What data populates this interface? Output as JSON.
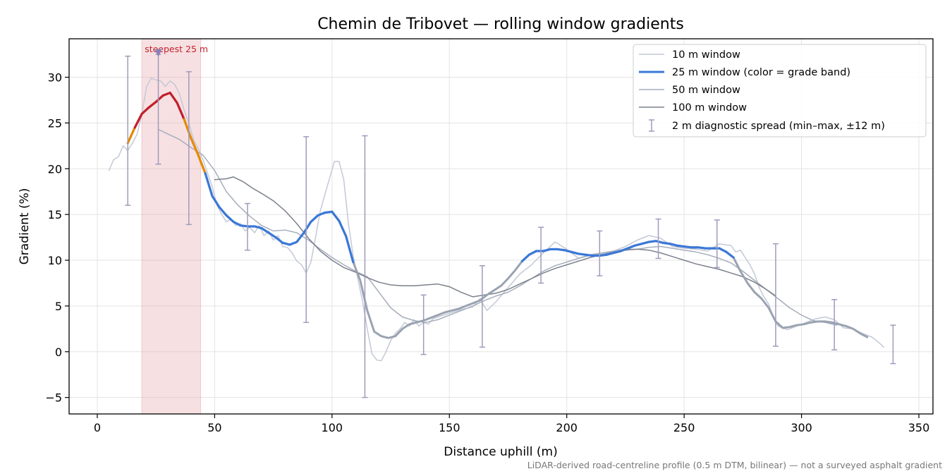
{
  "chart_data": {
    "type": "line",
    "title": "Chemin de Tribovet — rolling window gradients",
    "xlabel": "Distance uphill (m)",
    "ylabel": "Gradient (%)",
    "xlim": [
      -12,
      356
    ],
    "ylim": [
      -6.8,
      34.2
    ],
    "xticks": [
      0,
      50,
      100,
      150,
      200,
      250,
      300,
      350
    ],
    "yticks": [
      -5,
      0,
      5,
      10,
      15,
      20,
      25,
      30
    ],
    "grid": true,
    "legend_position": "top-right",
    "colors": {
      "w10": "#c3c9d6",
      "w25_base": "#9aa3b1",
      "w50": "#a6aebc",
      "w100": "#7b818c",
      "band_steep": "#c21f2a",
      "band_hard": "#e58a00",
      "band_moderate": "#3b78d8",
      "errorbar": "#9f9bbd",
      "marker": "#8a7fb8",
      "highlight": "#e8a6ad",
      "annotation": "#c2222c"
    },
    "series": [
      {
        "name": "10 m window",
        "key": "w10",
        "x": [
          5,
          7,
          9,
          11,
          13,
          15,
          17,
          19,
          21,
          23,
          25,
          27,
          29,
          31,
          33,
          35,
          37,
          39,
          41,
          43,
          45,
          47,
          49,
          51,
          53,
          55,
          57,
          59,
          61,
          63,
          65,
          67,
          69,
          71,
          73,
          75,
          77,
          79,
          81,
          83,
          85,
          87,
          89,
          91,
          93,
          95,
          97,
          99,
          101,
          103,
          105,
          107,
          109,
          111,
          113,
          115,
          117,
          119,
          121,
          123,
          125,
          127,
          129,
          131,
          133,
          135,
          137,
          139,
          141,
          143,
          145,
          150,
          155,
          160,
          163,
          166,
          170,
          175,
          180,
          185,
          190,
          195,
          200,
          205,
          210,
          215,
          220,
          225,
          230,
          235,
          240,
          245,
          250,
          255,
          260,
          265,
          270,
          272,
          274,
          276,
          278,
          280,
          282,
          284,
          286,
          288,
          290,
          294,
          298,
          302,
          306,
          310,
          314,
          318,
          322,
          326,
          330,
          333,
          335
        ],
        "y": [
          19.8,
          21.0,
          21.3,
          22.5,
          22.0,
          22.8,
          23.8,
          26.0,
          29.0,
          29.9,
          29.7,
          29.6,
          29.0,
          29.6,
          29.2,
          28.2,
          26.4,
          25.0,
          23.2,
          22.2,
          21.0,
          19.5,
          18.0,
          16.0,
          15.0,
          14.2,
          14.5,
          13.8,
          14.0,
          13.2,
          13.6,
          13.0,
          13.8,
          12.7,
          13.2,
          12.2,
          12.7,
          11.5,
          11.4,
          10.8,
          9.9,
          9.5,
          8.6,
          9.8,
          12.5,
          15.4,
          17.2,
          19.0,
          20.8,
          20.8,
          18.8,
          14.0,
          10.5,
          8.0,
          5.5,
          2.5,
          -0.2,
          -0.9,
          -1.0,
          0.0,
          1.2,
          2.0,
          2.5,
          3.2,
          2.8,
          3.5,
          2.8,
          3.2,
          3.0,
          3.6,
          3.8,
          4.2,
          4.6,
          4.9,
          5.8,
          4.5,
          5.5,
          7.0,
          8.5,
          9.5,
          10.8,
          12.0,
          11.2,
          10.2,
          10.5,
          10.7,
          11.0,
          11.5,
          12.2,
          12.7,
          12.4,
          11.5,
          11.3,
          11.2,
          11.0,
          11.8,
          11.6,
          10.9,
          11.1,
          10.3,
          9.5,
          8.5,
          7.0,
          6.0,
          5.2,
          3.8,
          2.8,
          2.4,
          2.8,
          3.2,
          3.6,
          3.8,
          3.5,
          2.6,
          2.5,
          2.0,
          1.6,
          1.0,
          0.5
        ]
      },
      {
        "name": "25 m window (color = grade band)",
        "key": "w25",
        "x": [
          13,
          16,
          19,
          22,
          25,
          28,
          31,
          34,
          37,
          40,
          43,
          46,
          49,
          52,
          55,
          58,
          61,
          64,
          67,
          70,
          73,
          76,
          79,
          82,
          85,
          88,
          91,
          94,
          97,
          100,
          103,
          106,
          109,
          112,
          115,
          118,
          121,
          124,
          127,
          130,
          133,
          136,
          139,
          142,
          145,
          148,
          151,
          154,
          157,
          160,
          163,
          166,
          169,
          172,
          175,
          178,
          181,
          184,
          187,
          190,
          193,
          196,
          199,
          202,
          205,
          208,
          211,
          214,
          217,
          220,
          223,
          226,
          229,
          232,
          235,
          238,
          241,
          244,
          247,
          250,
          253,
          256,
          259,
          262,
          265,
          268,
          271,
          274,
          277,
          280,
          283,
          286,
          289,
          292,
          295,
          298,
          301,
          304,
          307,
          310,
          313,
          316,
          319,
          322,
          325,
          328
        ],
        "y": [
          22.8,
          24.5,
          26.0,
          26.7,
          27.3,
          28.0,
          28.3,
          27.2,
          25.4,
          23.3,
          21.5,
          19.5,
          17.0,
          15.8,
          14.9,
          14.2,
          13.8,
          13.7,
          13.7,
          13.5,
          13.0,
          12.5,
          11.9,
          11.7,
          12.0,
          13.0,
          14.2,
          14.9,
          15.2,
          15.3,
          14.3,
          12.6,
          9.8,
          7.8,
          4.5,
          2.2,
          1.7,
          1.5,
          1.7,
          2.5,
          3.0,
          3.2,
          3.4,
          3.7,
          4.0,
          4.3,
          4.5,
          4.7,
          5.0,
          5.3,
          5.6,
          6.2,
          6.7,
          7.2,
          8.0,
          8.9,
          9.9,
          10.6,
          11.0,
          11.0,
          11.2,
          11.2,
          11.1,
          10.9,
          10.7,
          10.6,
          10.5,
          10.5,
          10.6,
          10.8,
          11.0,
          11.3,
          11.6,
          11.8,
          12.0,
          12.1,
          11.9,
          11.8,
          11.6,
          11.5,
          11.4,
          11.4,
          11.3,
          11.3,
          11.3,
          10.9,
          10.3,
          8.8,
          7.5,
          6.5,
          5.8,
          4.8,
          3.3,
          2.6,
          2.7,
          2.9,
          3.0,
          3.2,
          3.3,
          3.3,
          3.2,
          3.0,
          2.8,
          2.5,
          2.0,
          1.6
        ]
      },
      {
        "name": "50 m window",
        "key": "w50",
        "x": [
          26,
          30,
          35,
          40,
          45,
          50,
          55,
          60,
          65,
          70,
          75,
          80,
          85,
          90,
          95,
          100,
          105,
          110,
          115,
          120,
          125,
          130,
          135,
          140,
          145,
          150,
          155,
          160,
          165,
          170,
          175,
          180,
          185,
          190,
          195,
          200,
          205,
          210,
          215,
          220,
          225,
          230,
          235,
          240,
          245,
          250,
          255,
          260,
          265,
          270,
          275,
          280,
          285,
          290,
          295,
          300,
          305,
          310,
          315
        ],
        "y": [
          24.3,
          23.8,
          23.2,
          22.3,
          21.5,
          19.8,
          17.5,
          16.0,
          14.8,
          13.8,
          13.2,
          13.3,
          13.0,
          12.2,
          11.2,
          10.3,
          9.5,
          8.8,
          8.2,
          6.5,
          4.8,
          3.8,
          3.4,
          3.2,
          3.5,
          4.0,
          4.5,
          5.0,
          5.6,
          6.1,
          6.5,
          7.2,
          8.0,
          8.8,
          9.4,
          9.8,
          10.2,
          10.6,
          10.8,
          11.0,
          11.2,
          11.2,
          11.4,
          11.5,
          11.3,
          11.1,
          10.9,
          10.6,
          10.2,
          9.7,
          8.8,
          7.8,
          6.8,
          5.8,
          4.8,
          4.0,
          3.4,
          3.2,
          2.9
        ]
      },
      {
        "name": "100 m window",
        "key": "w100",
        "x": [
          50,
          55,
          58,
          62,
          66,
          70,
          75,
          80,
          85,
          90,
          95,
          100,
          105,
          110,
          115,
          120,
          125,
          130,
          135,
          140,
          145,
          150,
          155,
          160,
          165,
          170,
          175,
          180,
          185,
          190,
          195,
          200,
          205,
          210,
          215,
          220,
          225,
          230,
          235,
          240,
          245,
          250,
          255,
          260,
          265,
          270,
          275,
          280,
          285,
          289
        ],
        "y": [
          18.8,
          18.9,
          19.1,
          18.6,
          17.9,
          17.3,
          16.5,
          15.4,
          14.0,
          12.4,
          11.0,
          10.0,
          9.2,
          8.7,
          8.1,
          7.6,
          7.3,
          7.2,
          7.2,
          7.3,
          7.4,
          7.1,
          6.5,
          6.0,
          6.2,
          6.4,
          6.8,
          7.4,
          8.0,
          8.6,
          9.1,
          9.5,
          9.9,
          10.3,
          10.6,
          10.9,
          11.1,
          11.2,
          11.1,
          10.8,
          10.4,
          10.0,
          9.6,
          9.3,
          9.0,
          8.6,
          8.2,
          7.6,
          6.8,
          6.1
        ]
      }
    ],
    "errorbars": {
      "name": "2 m diagnostic spread (min–max, ±12 m)",
      "points": [
        {
          "x": 13,
          "ymin": 16.0,
          "ymax": 32.3
        },
        {
          "x": 26,
          "ymin": 20.5,
          "ymax": 32.5
        },
        {
          "x": 39,
          "ymin": 13.9,
          "ymax": 30.6
        },
        {
          "x": 64,
          "ymin": 11.1,
          "ymax": 16.2
        },
        {
          "x": 89,
          "ymin": 3.2,
          "ymax": 23.5
        },
        {
          "x": 114,
          "ymin": -5.0,
          "ymax": 23.6
        },
        {
          "x": 139,
          "ymin": -0.3,
          "ymax": 6.2
        },
        {
          "x": 164,
          "ymin": 0.5,
          "ymax": 9.4
        },
        {
          "x": 189,
          "ymin": 7.5,
          "ymax": 13.6
        },
        {
          "x": 214,
          "ymin": 8.3,
          "ymax": 13.2
        },
        {
          "x": 239,
          "ymin": 10.2,
          "ymax": 14.5
        },
        {
          "x": 264,
          "ymin": 9.2,
          "ymax": 14.4
        },
        {
          "x": 289,
          "ymin": 0.6,
          "ymax": 11.8
        },
        {
          "x": 314,
          "ymin": 0.2,
          "ymax": 5.7
        },
        {
          "x": 339,
          "ymin": -1.3,
          "ymax": 2.9
        }
      ]
    },
    "highlight": {
      "x0": 19,
      "x1": 44,
      "label": "steepest 25 m",
      "marker_x": 26,
      "marker_y": 32.6
    },
    "footnote": "LiDAR-derived road-centreline profile (0.5 m DTM, bilinear) — not a surveyed asphalt gradient"
  }
}
